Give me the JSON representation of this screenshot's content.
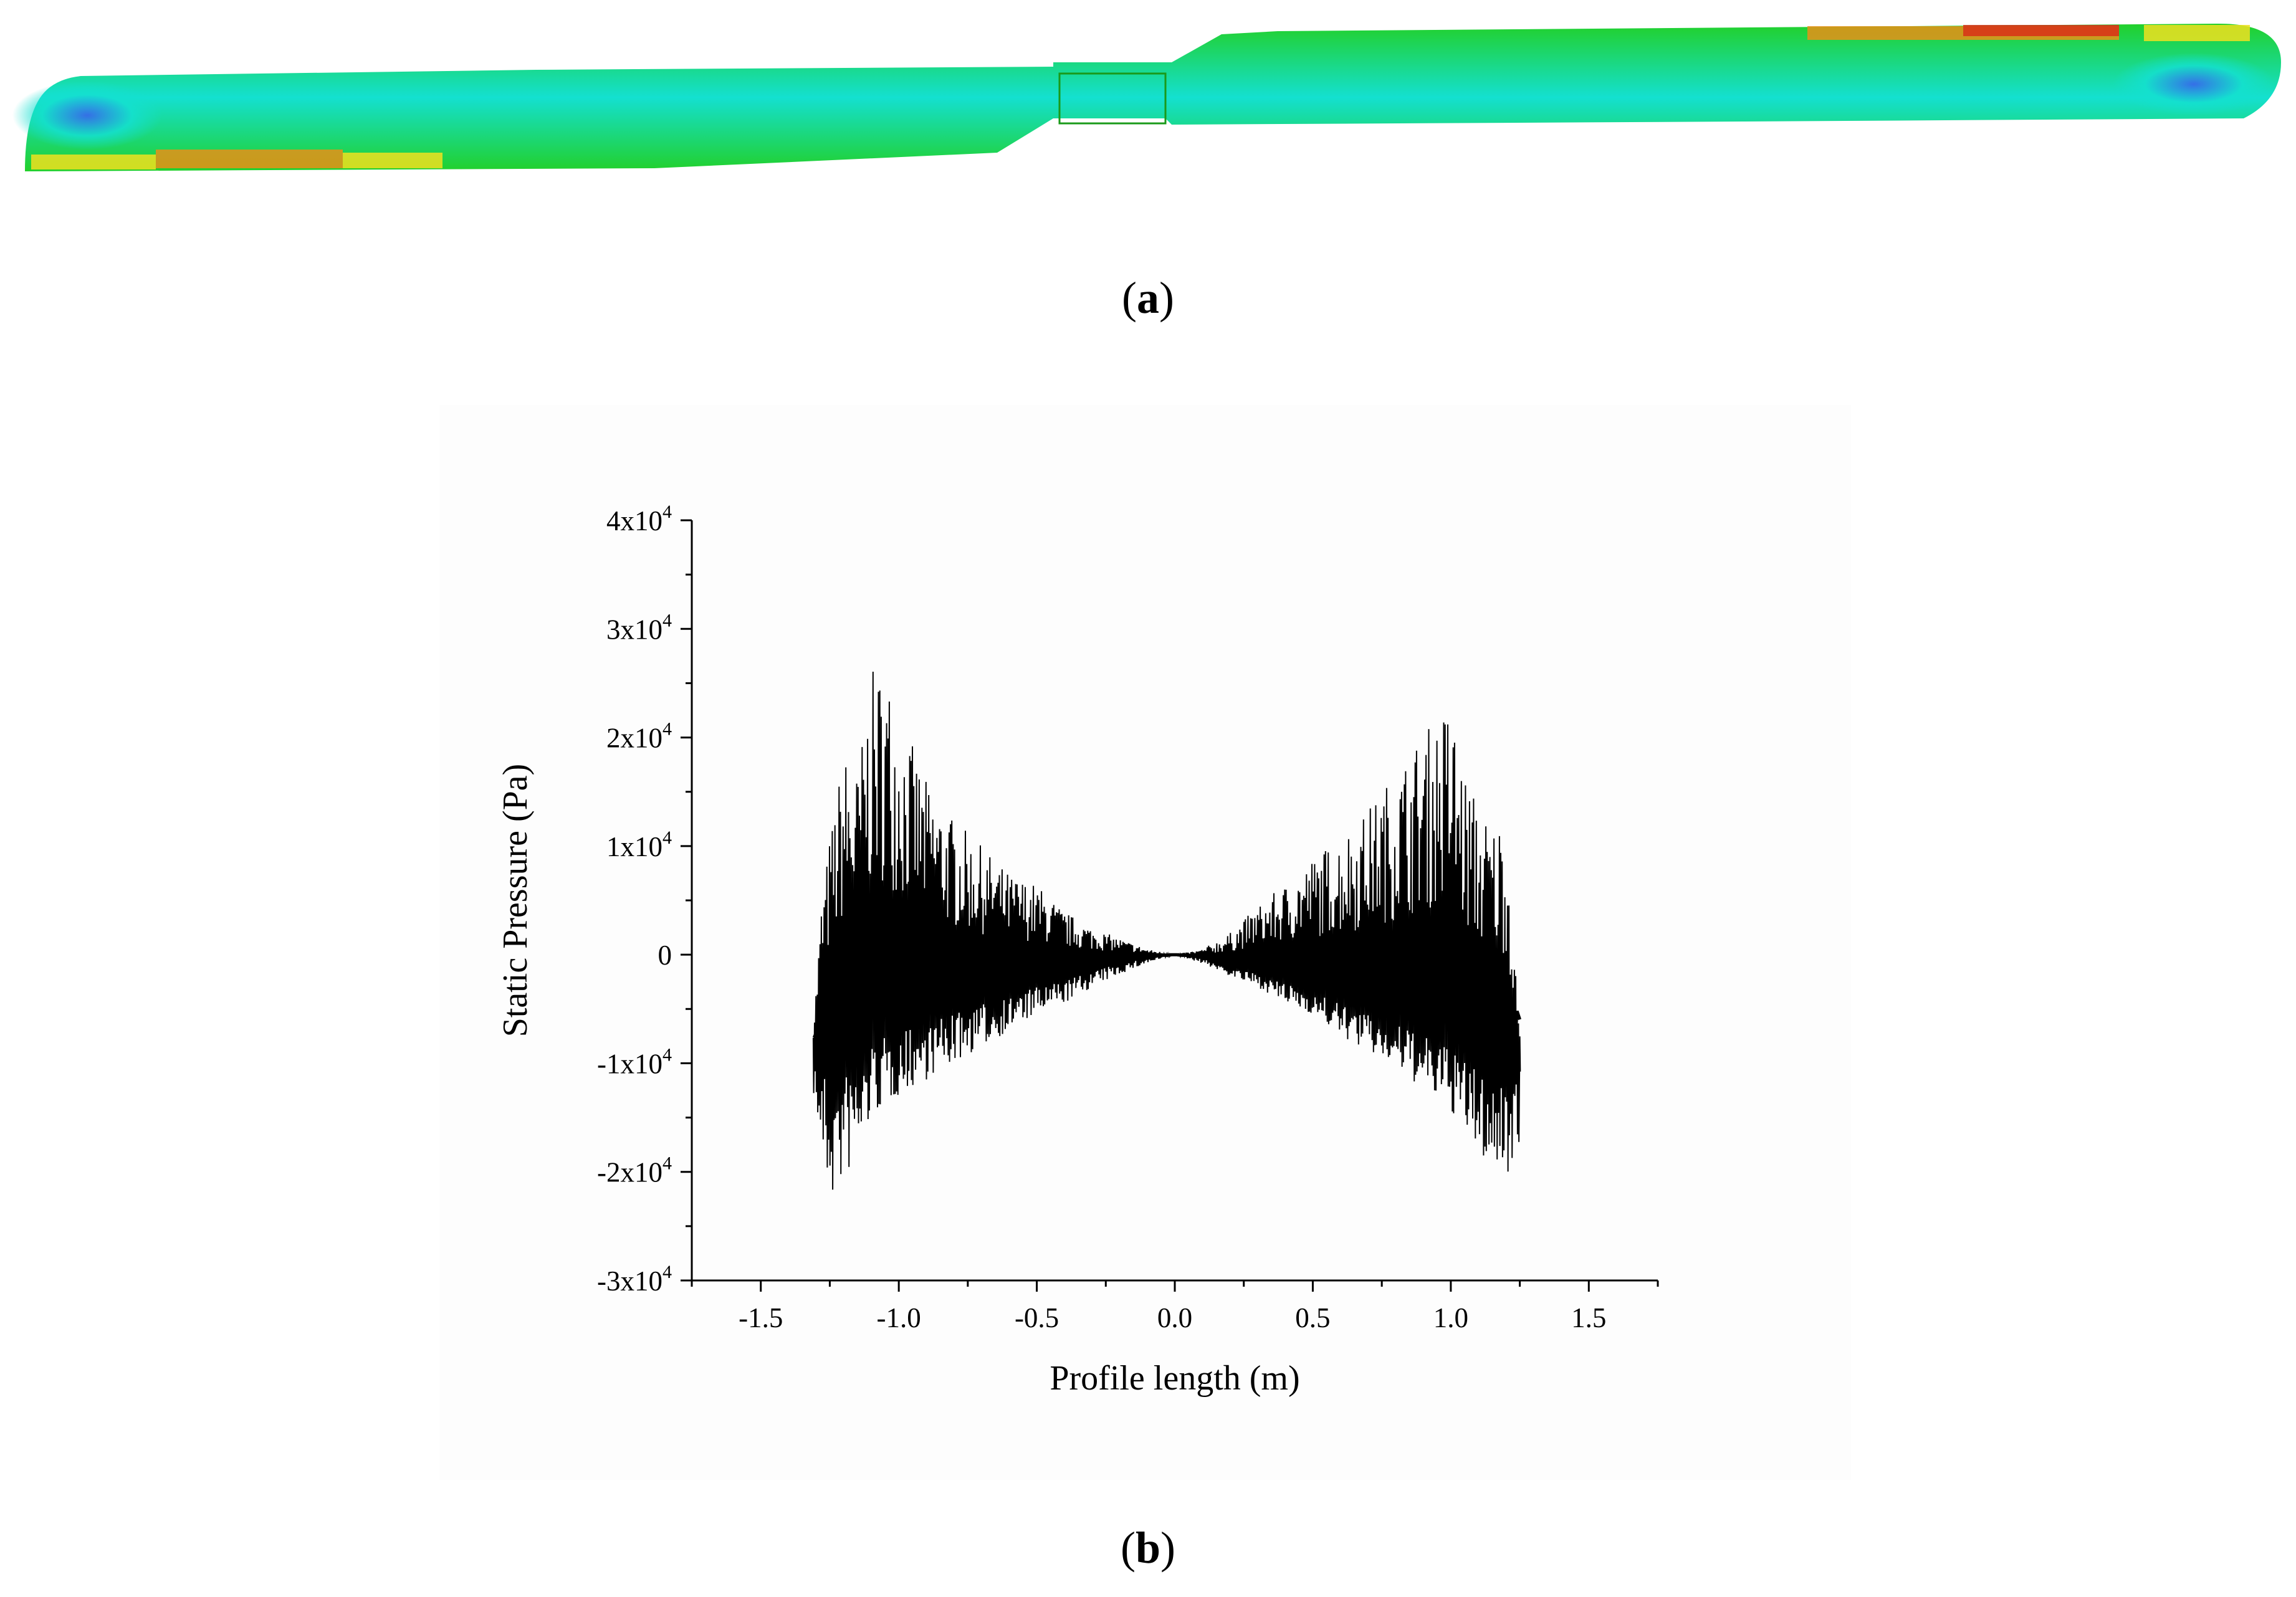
{
  "panels": {
    "a": {
      "caption_open": "(",
      "caption_letter": "a",
      "caption_close": ")",
      "contour_colors": {
        "green": "#22d02a",
        "cyan": "#14e0d0",
        "blue": "#3a5cf0",
        "yellow": "#f0e020",
        "orange": "#e89018",
        "red": "#d83018"
      }
    },
    "b": {
      "caption_open": "(",
      "caption_letter": "b",
      "caption_close": ")"
    }
  },
  "chart_data": {
    "type": "line",
    "xlabel": "Profile length (m)",
    "ylabel": "Static Pressure (Pa)",
    "xlim": [
      -1.75,
      1.75
    ],
    "ylim": [
      -30000,
      40000
    ],
    "x_ticks": [
      -1.5,
      -1.0,
      -0.5,
      0.0,
      0.5,
      1.0,
      1.5
    ],
    "x_tick_labels": [
      "-1.5",
      "-1.0",
      "-0.5",
      "0.0",
      "0.5",
      "1.0",
      "1.5"
    ],
    "y_ticks": [
      {
        "value": 40000,
        "mantissa": "4",
        "exp": "4"
      },
      {
        "value": 30000,
        "mantissa": "3",
        "exp": "4"
      },
      {
        "value": 20000,
        "mantissa": "2",
        "exp": "4"
      },
      {
        "value": 10000,
        "mantissa": "1",
        "exp": "4"
      },
      {
        "value": 0,
        "mantissa": "0",
        "exp": ""
      },
      {
        "value": -10000,
        "mantissa": "-1",
        "exp": "4"
      },
      {
        "value": -20000,
        "mantissa": "-2",
        "exp": "4"
      },
      {
        "value": -30000,
        "mantissa": "-3",
        "exp": "4"
      }
    ],
    "x_range": [
      -1.31,
      1.25
    ],
    "grid": false,
    "series": [
      {
        "color": "#000000",
        "envelope": {
          "x": [
            -1.31,
            -1.28,
            -1.25,
            -1.2,
            -1.15,
            -1.1,
            -1.05,
            -1.0,
            -0.9,
            -0.8,
            -0.7,
            -0.6,
            -0.5,
            -0.4,
            -0.3,
            -0.2,
            -0.1,
            0.0,
            0.1,
            0.2,
            0.3,
            0.4,
            0.5,
            0.6,
            0.7,
            0.8,
            0.9,
            0.95,
            1.0,
            1.05,
            1.1,
            1.15,
            1.2,
            1.25
          ],
          "upper": [
            -7000,
            5000,
            11000,
            19000,
            17000,
            26000,
            27000,
            22500,
            16000,
            12500,
            10000,
            7500,
            6500,
            4000,
            2500,
            1500,
            500,
            0,
            500,
            2000,
            4500,
            6500,
            9000,
            11000,
            13500,
            17000,
            20500,
            22000,
            23500,
            17000,
            14000,
            12000,
            13000,
            -8000
          ],
          "lower": [
            -13000,
            -19000,
            -23000,
            -21000,
            -19000,
            -15000,
            -14000,
            -13000,
            -11500,
            -10000,
            -8500,
            -7000,
            -5500,
            -4500,
            -3000,
            -1800,
            -800,
            0,
            -800,
            -2000,
            -3000,
            -4500,
            -5500,
            -7500,
            -9000,
            -10500,
            -12500,
            -13500,
            -14500,
            -16500,
            -18500,
            -20000,
            -20500,
            -17000
          ],
          "baseline": [
            -8000,
            -6000,
            -5800,
            -5500,
            -5000,
            -4500,
            -4200,
            -3900,
            -3300,
            -3000,
            -2500,
            -2000,
            -1600,
            -1200,
            -700,
            -300,
            -100,
            0,
            -200,
            -700,
            -1200,
            -1800,
            -2400,
            -3000,
            -3600,
            -4200,
            -4800,
            -5200,
            -5600,
            -6000,
            -6300,
            -6500,
            -6700,
            -7000
          ]
        }
      }
    ]
  }
}
